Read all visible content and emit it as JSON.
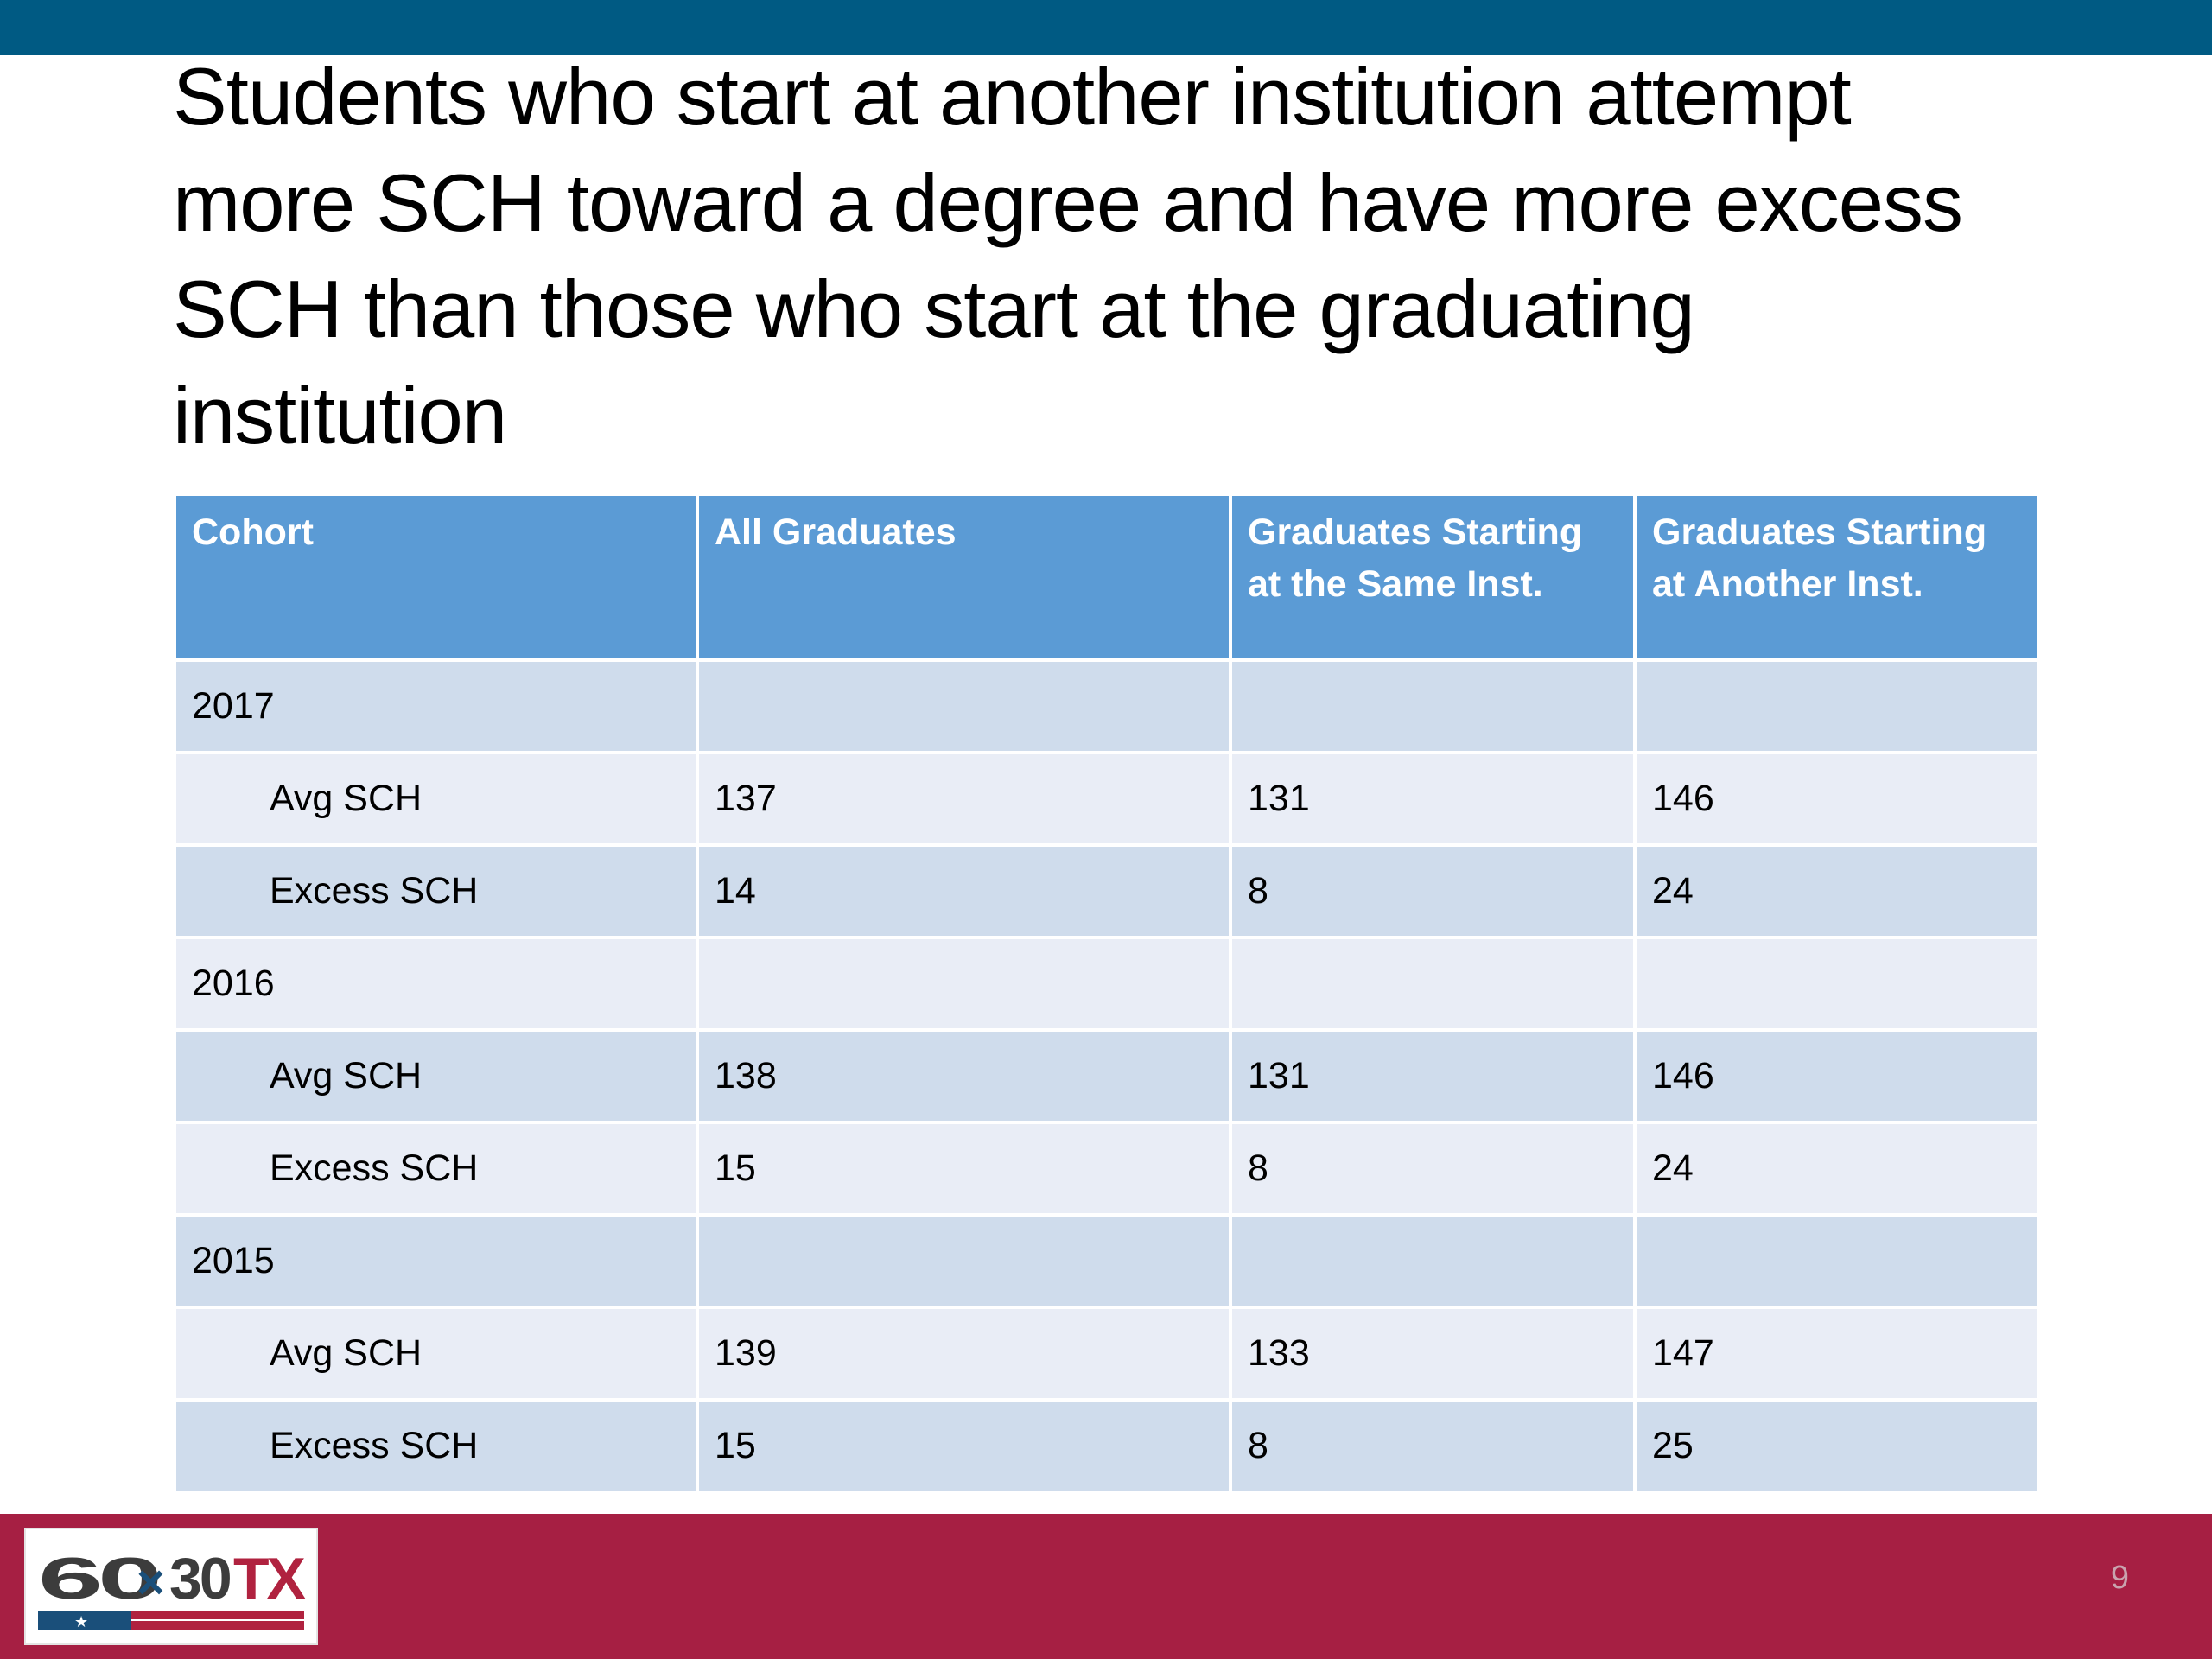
{
  "slide": {
    "title": "Students who start at another institution attempt more SCH toward a degree and have more excess SCH than those who start at the graduating institution",
    "page_number": "9"
  },
  "logo": {
    "text": "60x30TX"
  },
  "colors": {
    "top_bar": "#005a83",
    "footer": "#a61f43",
    "table_header": "#5b9bd5",
    "row_dark": "#cfdcec",
    "row_light": "#e9edf6"
  },
  "table": {
    "headers": [
      "Cohort",
      "All Graduates",
      "Graduates Starting at the Same  Inst.",
      "Graduates Starting at Another Inst."
    ],
    "rows": [
      {
        "cells": [
          "2017",
          "",
          "",
          ""
        ]
      },
      {
        "cells": [
          "Avg SCH",
          "137",
          "131",
          "146"
        ]
      },
      {
        "cells": [
          "Excess SCH",
          "14",
          "8",
          "24"
        ]
      },
      {
        "cells": [
          "2016",
          "",
          "",
          ""
        ]
      },
      {
        "cells": [
          "Avg SCH",
          "138",
          "131",
          "146"
        ]
      },
      {
        "cells": [
          "Excess SCH",
          "15",
          "8",
          "24"
        ]
      },
      {
        "cells": [
          "2015",
          "",
          "",
          ""
        ]
      },
      {
        "cells": [
          "Avg SCH",
          "139",
          "133",
          "147"
        ]
      },
      {
        "cells": [
          "Excess SCH",
          "15",
          "8",
          "25"
        ]
      }
    ]
  }
}
